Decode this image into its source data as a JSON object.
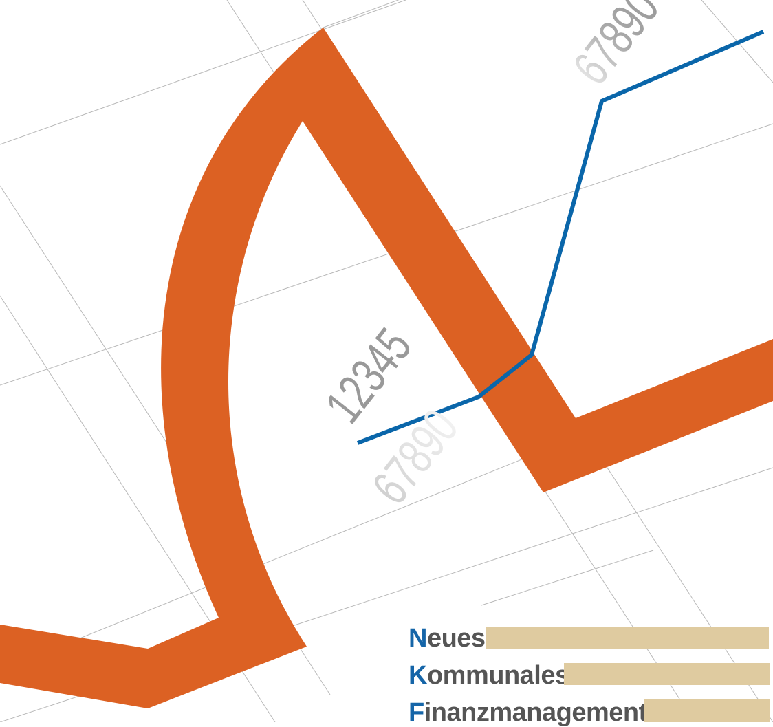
{
  "colors": {
    "orange": "#dc6123",
    "blue": "#0a66aa",
    "sand": "#dfcba0",
    "grid": "#b8b8b8",
    "text_gray": "#555555"
  },
  "numbers": {
    "top": "67890",
    "middle": "12345",
    "lower": "67890"
  },
  "brand": {
    "line1_initial": "N",
    "line1_rest": "eues",
    "line2_initial": "K",
    "line2_rest": "ommunales",
    "line3_initial": "F",
    "line3_rest": "inanzmanagement"
  }
}
